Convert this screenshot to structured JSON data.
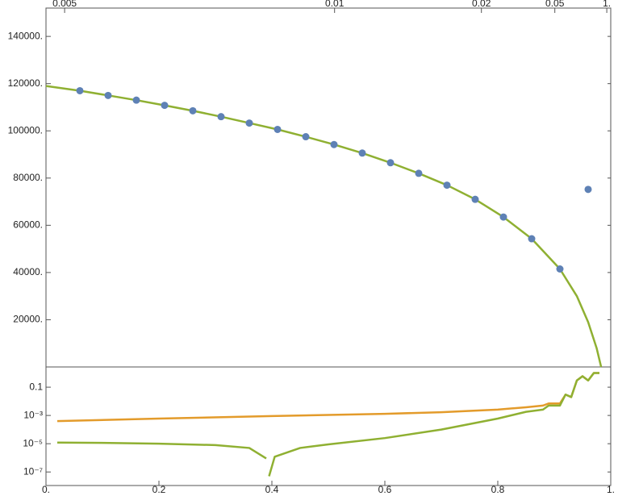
{
  "chart_data": [
    {
      "type": "line",
      "xlim": [
        0,
        1
      ],
      "ylim": [
        0,
        152000
      ],
      "yticks": [
        {
          "value": 20000,
          "label": "20000."
        },
        {
          "value": 40000,
          "label": "40000."
        },
        {
          "value": 60000,
          "label": "60000."
        },
        {
          "value": 80000,
          "label": "80000."
        },
        {
          "value": 100000,
          "label": "100000."
        },
        {
          "value": 120000,
          "label": "120000."
        },
        {
          "value": 140000,
          "label": "140000."
        }
      ],
      "x2ticks": [
        {
          "value": 0.033,
          "label": "0.005"
        },
        {
          "value": 0.511,
          "label": "0.01"
        },
        {
          "value": 0.771,
          "label": "0.02"
        },
        {
          "value": 0.901,
          "label": "0.05"
        },
        {
          "value": 0.993,
          "label": "1."
        }
      ],
      "series": [
        {
          "style": "line",
          "color": "#8fb032",
          "x": [
            0,
            0.06,
            0.11,
            0.16,
            0.21,
            0.26,
            0.31,
            0.36,
            0.41,
            0.46,
            0.51,
            0.56,
            0.61,
            0.66,
            0.71,
            0.76,
            0.81,
            0.86,
            0.91,
            0.94,
            0.96,
            0.975,
            0.983
          ],
          "values": [
            119000,
            117000,
            115000,
            113000,
            110800,
            108500,
            106000,
            103300,
            100600,
            97500,
            94200,
            90600,
            86500,
            82000,
            77000,
            71000,
            63500,
            54300,
            41500,
            30000,
            19000,
            8000,
            0
          ]
        },
        {
          "style": "points",
          "color": "#5e81b5",
          "x": [
            0.06,
            0.11,
            0.16,
            0.21,
            0.26,
            0.31,
            0.36,
            0.41,
            0.46,
            0.51,
            0.56,
            0.61,
            0.66,
            0.71,
            0.76,
            0.81,
            0.86,
            0.91,
            0.96
          ],
          "values": [
            117000,
            115000,
            113000,
            110800,
            108500,
            106000,
            103300,
            100600,
            97500,
            94200,
            90600,
            86500,
            82000,
            77000,
            71000,
            63500,
            54300,
            41500,
            75200
          ]
        }
      ]
    },
    {
      "type": "line",
      "log_y": true,
      "xlim": [
        0,
        1
      ],
      "ylim": [
        1.1e-08,
        2.7
      ],
      "xticks": [
        {
          "value": 0,
          "label": "0."
        },
        0.2,
        0.4,
        0.6,
        0.8,
        {
          "value": 1,
          "label": "1."
        }
      ],
      "yticks": [
        {
          "value": 1e-07,
          "label": "10⁻⁷"
        },
        {
          "value": 1e-05,
          "label": "10⁻⁵"
        },
        {
          "value": 0.001,
          "label": "10⁻³"
        },
        0.1
      ],
      "series": [
        {
          "color": "#e39b2b",
          "x": [
            0.02,
            0.2,
            0.4,
            0.6,
            0.7,
            0.8,
            0.85,
            0.88,
            0.89,
            0.91,
            0.92,
            0.93,
            0.94,
            0.95,
            0.96,
            0.97,
            0.98
          ],
          "values": [
            0.0004,
            0.0006,
            0.0009,
            0.0013,
            0.0017,
            0.0026,
            0.0038,
            0.005,
            0.007,
            0.007,
            0.03,
            0.02,
            0.3,
            0.6,
            0.3,
            1,
            1
          ]
        },
        {
          "color": "#8fb032",
          "x": [
            0.02,
            0.1,
            0.2,
            0.3,
            0.36,
            0.39,
            0.395,
            0.395,
            0.405,
            0.45,
            0.5,
            0.6,
            0.7,
            0.8,
            0.85,
            0.88,
            0.89,
            0.91,
            0.92,
            0.93,
            0.94,
            0.95,
            0.96,
            0.97,
            0.98
          ],
          "values": [
            1.2e-05,
            1.15e-05,
            1e-05,
            8e-06,
            5e-06,
            9e-07,
            null,
            5e-08,
            1.2e-06,
            5e-06,
            9e-06,
            2.5e-05,
            0.0001,
            0.0006,
            0.0018,
            0.0026,
            0.005,
            0.005,
            0.03,
            0.02,
            0.3,
            0.6,
            0.3,
            1,
            1
          ]
        }
      ]
    }
  ]
}
